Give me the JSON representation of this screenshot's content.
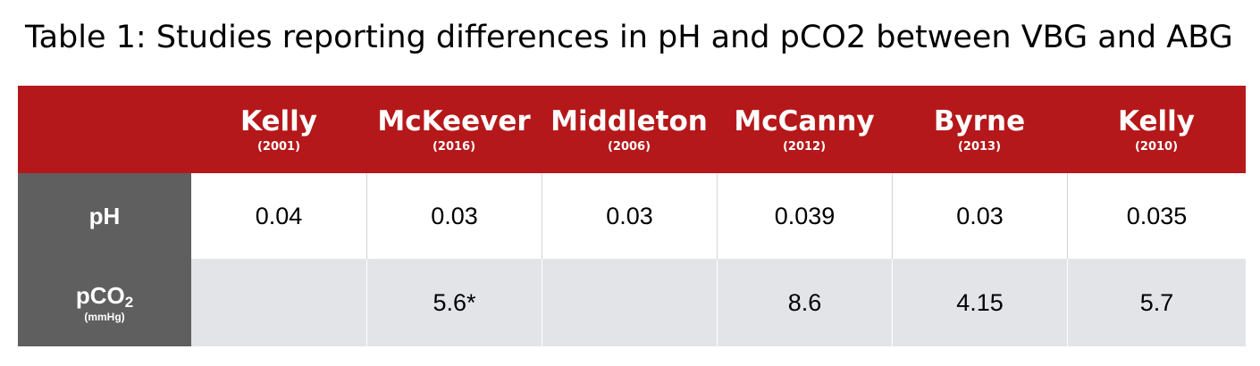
{
  "title": "Table 1: Studies reporting differences in pH and pCO2 between VBG and ABG",
  "table": {
    "columns": [
      {
        "author": "Kelly",
        "year": "(2001)"
      },
      {
        "author": "McKeever",
        "year": "(2016)"
      },
      {
        "author": "Middleton",
        "year": "(2006)"
      },
      {
        "author": "McCanny",
        "year": "(2012)"
      },
      {
        "author": "Byrne",
        "year": "(2013)"
      },
      {
        "author": "Kelly",
        "year": "(2010)"
      }
    ],
    "rows": [
      {
        "label": "pH",
        "unit": "",
        "values": [
          "0.04",
          "0.03",
          "0.03",
          "0.039",
          "0.03",
          "0.035"
        ]
      },
      {
        "label": "pCO",
        "label_subscript": "2",
        "unit": "(mmHg)",
        "values": [
          "",
          "5.6*",
          "",
          "8.6",
          "4.15",
          "5.7"
        ]
      }
    ]
  },
  "colors": {
    "header_bg": "#b5181a",
    "row_label_bg": "#5f5f5f",
    "alt_row_bg": "#e3e4e8"
  }
}
